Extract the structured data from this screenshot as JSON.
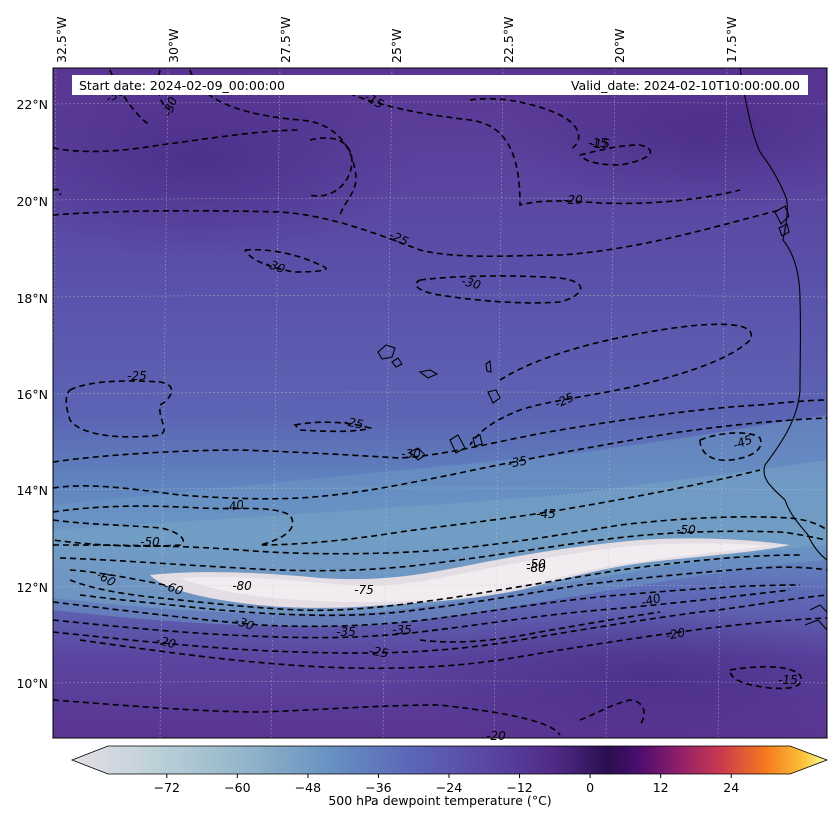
{
  "header": {
    "start_date": "Start date: 2024-02-09_00:00:00",
    "valid_date": "Valid_date: 2024-02-10T10:00:00.00"
  },
  "longitude_labels": [
    "32.5°W",
    "30°W",
    "27.5°W",
    "25°W",
    "22.5°W",
    "20°W",
    "17.5°W"
  ],
  "latitude_labels": [
    "22°N",
    "20°N",
    "18°N",
    "16°N",
    "14°N",
    "12°N",
    "10°N"
  ],
  "contour_labels": [
    "-30",
    "-15",
    "-30",
    "-15",
    "-20",
    "-25",
    "-30",
    "-30",
    "-25",
    "-25",
    "-25",
    "-30",
    "-35",
    "-45",
    "-40",
    "-45",
    "-50",
    "-50",
    "-50",
    "-60",
    "-60",
    "-80",
    "-80",
    "-75",
    "-40",
    "-30",
    "-35",
    "-35",
    "-20",
    "-20",
    "-25",
    "-15",
    "-15",
    "-20"
  ],
  "colorbar": {
    "ticks": [
      "−72",
      "−60",
      "−48",
      "−36",
      "−24",
      "−12",
      "0",
      "12",
      "24"
    ],
    "title": "500 hPa dewpoint temperature (°C)",
    "range": [
      -82,
      34
    ]
  },
  "colors": {
    "land_coast": "#000000",
    "field_dry": "#5a3592",
    "field_moist": "#5f8ac0",
    "field_core": "#e6dde6"
  }
}
